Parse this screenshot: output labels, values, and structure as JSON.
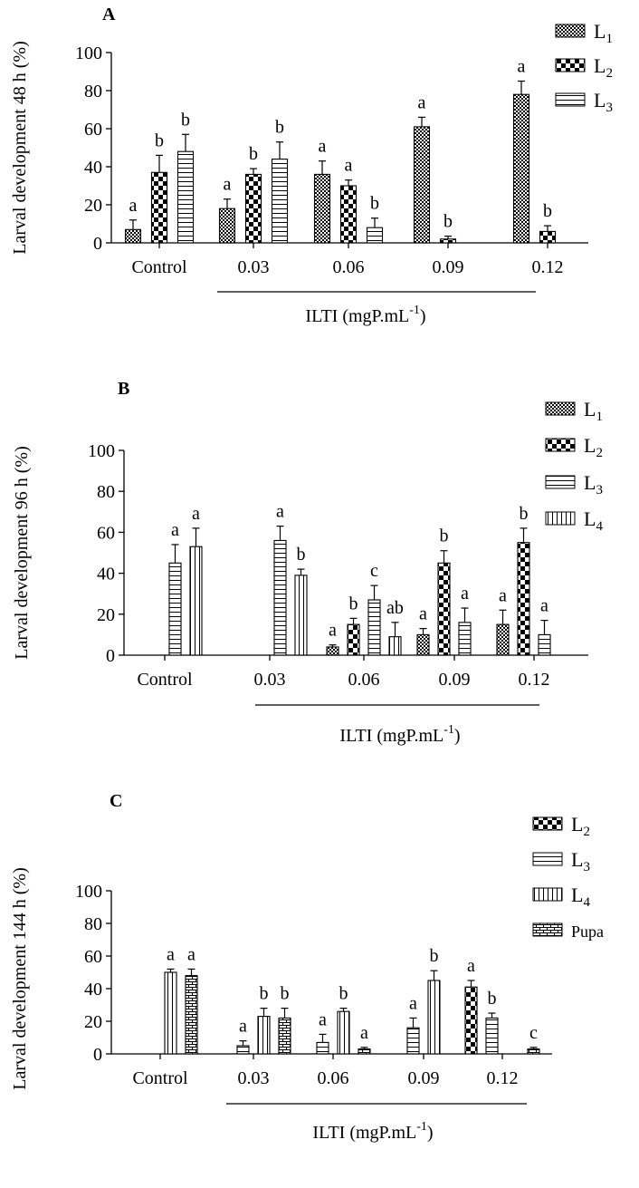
{
  "chart_data": [
    {
      "type": "bar",
      "panel": "A",
      "ylabel": "Larval development 48 h (%)",
      "xlabel": "ILTI (mgP.mL",
      "xlabel_sup": "-1",
      "xlabel_close": ")",
      "ylim": [
        0,
        100
      ],
      "yticks": [
        "0",
        "20",
        "40",
        "60",
        "80",
        "100"
      ],
      "categories": [
        "Control",
        "0.03",
        "0.06",
        "0.09",
        "0.12"
      ],
      "series": [
        {
          "name": "L",
          "sub": "1",
          "pattern": "checker-fine",
          "values": [
            7,
            18,
            36,
            61,
            78
          ],
          "errors": [
            5,
            5,
            7,
            5,
            7
          ],
          "letters": [
            "a",
            "a",
            "a",
            "a",
            "a"
          ]
        },
        {
          "name": "L",
          "sub": "2",
          "pattern": "checker-bold",
          "values": [
            37,
            36,
            30,
            2,
            6
          ],
          "errors": [
            9,
            3,
            3,
            1.5,
            3
          ],
          "letters": [
            "b",
            "b",
            "a",
            "b",
            "b"
          ]
        },
        {
          "name": "L",
          "sub": "3",
          "pattern": "hstripe",
          "values": [
            48,
            44,
            8,
            0,
            0
          ],
          "errors": [
            9,
            9,
            5,
            0,
            0
          ],
          "letters": [
            "b",
            "b",
            "b",
            "",
            ""
          ]
        }
      ]
    },
    {
      "type": "bar",
      "panel": "B",
      "ylabel": "Larval development 96 h (%)",
      "xlabel": "ILTI (mgP.mL",
      "xlabel_sup": "-1",
      "xlabel_close": ")",
      "ylim": [
        0,
        100
      ],
      "yticks": [
        "0",
        "20",
        "40",
        "60",
        "80",
        "100"
      ],
      "categories": [
        "Control",
        "0.03",
        "0.06",
        "0.09",
        "0.12"
      ],
      "series": [
        {
          "name": "L",
          "sub": "1",
          "pattern": "checker-fine",
          "values": [
            0,
            0,
            4,
            10,
            15
          ],
          "errors": [
            0,
            0,
            1,
            3,
            7
          ],
          "letters": [
            "",
            "",
            "a",
            "a",
            "a"
          ]
        },
        {
          "name": "L",
          "sub": "2",
          "pattern": "checker-bold",
          "values": [
            0,
            0,
            15,
            45,
            55
          ],
          "errors": [
            0,
            0,
            3,
            6,
            7
          ],
          "letters": [
            "",
            "",
            "b",
            "b",
            "b"
          ]
        },
        {
          "name": "L",
          "sub": "3",
          "pattern": "hstripe",
          "values": [
            45,
            56,
            27,
            16,
            10
          ],
          "errors": [
            9,
            7,
            7,
            7,
            7
          ],
          "letters": [
            "a",
            "a",
            "c",
            "a",
            "a"
          ]
        },
        {
          "name": "L",
          "sub": "4",
          "pattern": "vstripe",
          "values": [
            53,
            39,
            9,
            0,
            0
          ],
          "errors": [
            9,
            3,
            7,
            0,
            0
          ],
          "letters": [
            "a",
            "b",
            "ab",
            "",
            ""
          ]
        }
      ]
    },
    {
      "type": "bar",
      "panel": "C",
      "ylabel": "Larval development 144 h (%)",
      "xlabel": "ILTI (mgP.mL",
      "xlabel_sup": "-1",
      "xlabel_close": ")",
      "ylim": [
        0,
        100
      ],
      "yticks": [
        "0",
        "20",
        "40",
        "60",
        "80",
        "100"
      ],
      "categories": [
        "Control",
        "0.03",
        "0.06",
        "0.09",
        "0.12"
      ],
      "series": [
        {
          "name": "L",
          "sub": "2",
          "pattern": "checker-bold",
          "values": [
            0,
            0,
            0,
            0,
            41
          ],
          "errors": [
            0,
            0,
            0,
            0,
            4
          ],
          "letters": [
            "",
            "",
            "",
            "",
            "a"
          ]
        },
        {
          "name": "L",
          "sub": "3",
          "pattern": "hstripe",
          "values": [
            0,
            5,
            7,
            16,
            22
          ],
          "errors": [
            0,
            3,
            5,
            6,
            3
          ],
          "letters": [
            "",
            "a",
            "a",
            "a",
            "b"
          ]
        },
        {
          "name": "L",
          "sub": "4",
          "pattern": "vstripe",
          "values": [
            50,
            23,
            26,
            45,
            0
          ],
          "errors": [
            2,
            5,
            2,
            6,
            0
          ],
          "letters": [
            "a",
            "b",
            "b",
            "b",
            ""
          ]
        },
        {
          "name": "Pupa",
          "sub": "",
          "pattern": "brick",
          "values": [
            48,
            22,
            3,
            0,
            3
          ],
          "errors": [
            4,
            6,
            1,
            0,
            1
          ],
          "letters": [
            "a",
            "b",
            "a",
            "",
            "c"
          ]
        }
      ]
    }
  ]
}
